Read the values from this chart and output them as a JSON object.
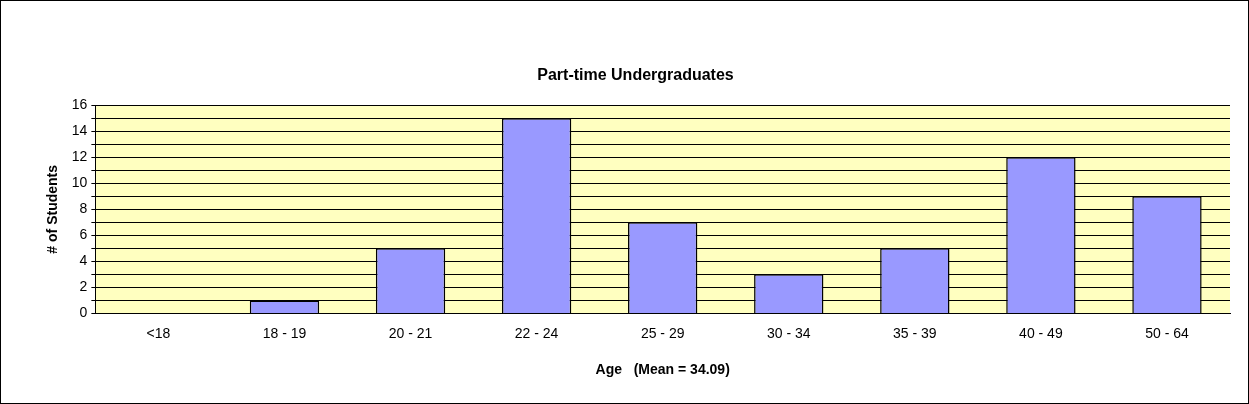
{
  "chart_data": {
    "type": "bar",
    "title": "Part-time Undergraduates",
    "xlabel": "Age   (Mean = 34.09)",
    "ylabel": "# of Students",
    "categories": [
      "<18",
      "18 - 19",
      "20 - 21",
      "22 - 24",
      "25 - 29",
      "30 - 34",
      "35 - 39",
      "40 - 49",
      "50 - 64"
    ],
    "values": [
      0,
      1,
      5,
      15,
      7,
      3,
      5,
      12,
      9
    ],
    "color": "#9999ff",
    "ylim": [
      0,
      16
    ],
    "yticks": [
      0,
      {
        "value": 1,
        "label": null
      },
      2,
      {
        "value": 3,
        "label": null
      },
      4,
      {
        "value": 5,
        "label": null
      },
      6,
      {
        "value": 7,
        "label": null
      },
      8,
      {
        "value": 9,
        "label": null
      },
      10,
      {
        "value": 11,
        "label": null
      },
      12,
      {
        "value": 13,
        "label": null
      },
      14,
      {
        "value": 15,
        "label": null
      },
      16
    ],
    "grid": "y",
    "legend": false
  }
}
